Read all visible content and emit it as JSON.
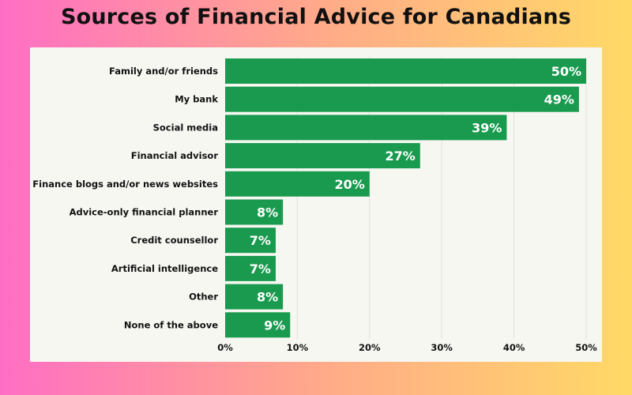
{
  "title": "Sources of Financial Advice for Canadians",
  "colors": {
    "bar": "#1a9a4f",
    "grid": "#e2e2dc",
    "background_left": "#ff6ec4",
    "background_right": "#ffd966"
  },
  "chart_data": {
    "type": "bar",
    "orientation": "horizontal",
    "categories": [
      "Family and/or friends",
      "My bank",
      "Social media",
      "Financial advisor",
      "Finance blogs and/or news websites",
      "Advice-only financial planner",
      "Credit counsellor",
      "Artificial intelligence",
      "Other",
      "None of the above"
    ],
    "values": [
      50,
      49,
      39,
      27,
      20,
      8,
      7,
      7,
      8,
      9
    ],
    "value_labels": [
      "50%",
      "49%",
      "39%",
      "27%",
      "20%",
      "8%",
      "7%",
      "7%",
      "8%",
      "9%"
    ],
    "x_ticks": [
      0,
      10,
      20,
      30,
      40,
      50
    ],
    "x_tick_labels": [
      "0%",
      "10%",
      "20%",
      "30%",
      "40%",
      "50%"
    ],
    "xlim": [
      0,
      50
    ],
    "grid": true,
    "legend": false
  }
}
